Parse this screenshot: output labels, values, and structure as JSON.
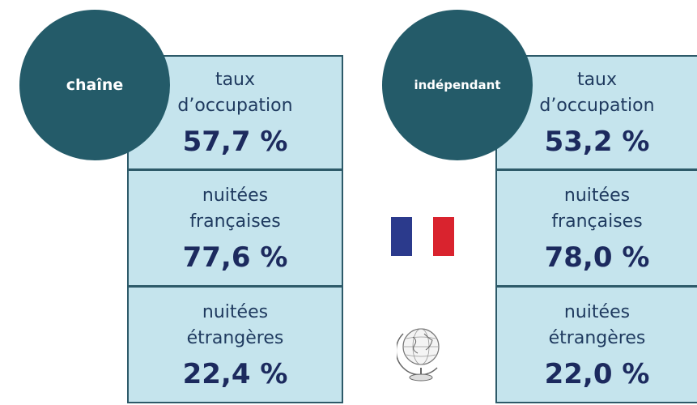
{
  "panels": [
    {
      "title": "chaîne",
      "rows": [
        {
          "label": [
            "taux",
            "d’occupation"
          ],
          "value": "57,7 %"
        },
        {
          "label": [
            "nuitées",
            "françaises"
          ],
          "value": "77,6 %"
        },
        {
          "label": [
            "nuitées",
            "étrangères"
          ],
          "value": "22,4 %"
        }
      ]
    },
    {
      "title": "indépendant",
      "rows": [
        {
          "label": [
            "taux",
            "d’occupation"
          ],
          "value": "53,2 %"
        },
        {
          "label": [
            "nuitées",
            "françaises"
          ],
          "value": "78,0 %"
        },
        {
          "label": [
            "nuitées",
            "étrangères"
          ],
          "value": "22,0 %"
        }
      ]
    }
  ]
}
